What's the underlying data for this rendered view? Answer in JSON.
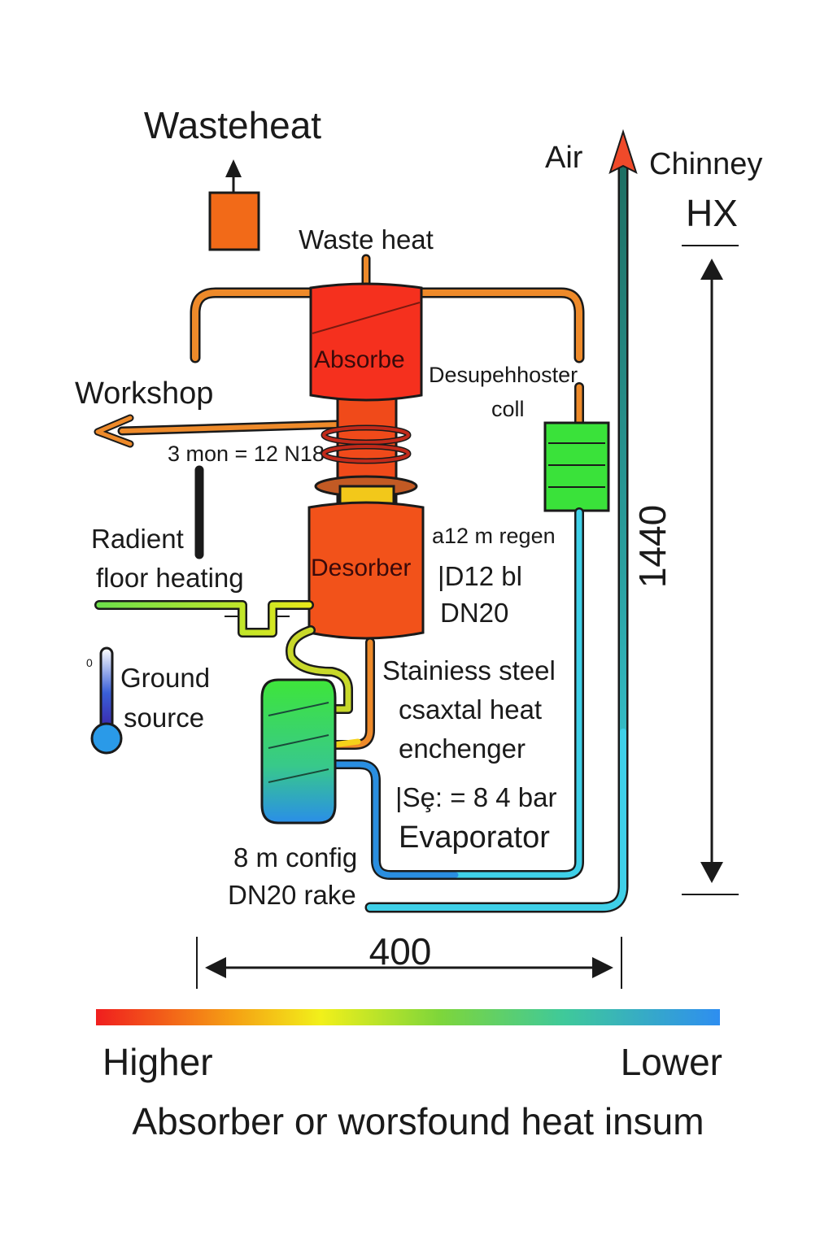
{
  "labels": {
    "wasteheat_top": "Wasteheat",
    "waste_heat": "Waste heat",
    "air": "Air",
    "chimney": "Chinney",
    "hx": "HX",
    "absorber": "Absorbe",
    "desuperheater_line1": "Desupehhoster",
    "desuperheater_line2": "coll",
    "workshop": "Workshop",
    "coil_spec": "3 mon = 12 N18",
    "regen_line1": "a12 m regen",
    "regen_line2": "|D12 bl",
    "regen_line3": "DN20",
    "radient_line1": "Radient",
    "radient_line2": "floor heating",
    "desorber": "Desorber",
    "ground_line1": "Ground",
    "ground_line2": "source",
    "thermo_zero": "0",
    "hx_desc_line1": "Stainiess steel",
    "hx_desc_line2": "csaxtal heat",
    "hx_desc_line3": "enchenger",
    "pressure": "|Sȩ: = 8 4 bar",
    "evaporator": "Evaporator",
    "config_line1": "8 m config",
    "config_line2": "DN20 rake",
    "height_dim": "1440",
    "width_dim": "400",
    "legend_high": "Higher",
    "legend_low": "Lower",
    "caption": "Absorber or worsfound heat insum"
  },
  "colors": {
    "hot": "#f02a1a",
    "warm": "#f26a18",
    "orange_pipe": "#ee8a2a",
    "yellow": "#f5e11a",
    "green": "#3ad93a",
    "teal": "#2e8a78",
    "cyan": "#3fd0e8",
    "blue": "#2a7ee8"
  }
}
